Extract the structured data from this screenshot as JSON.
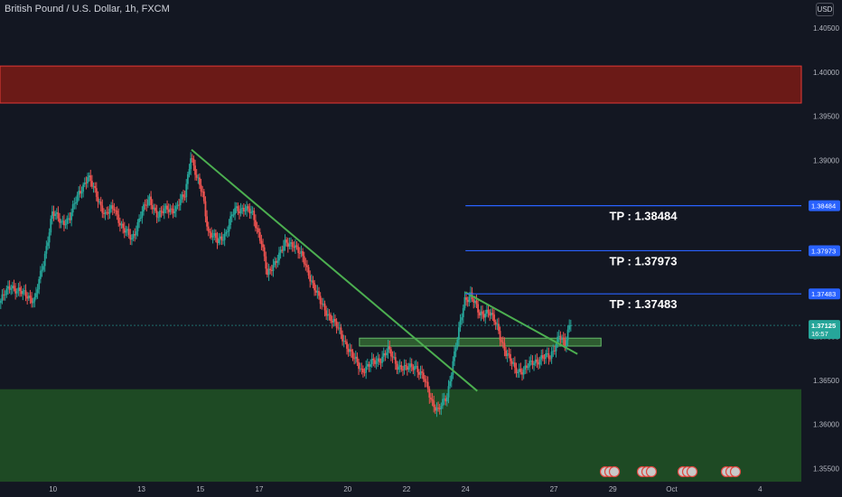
{
  "header": {
    "symbol_title": "British Pound / U.S. Dollar, 1h, FXCM",
    "currency": "USD"
  },
  "price_tag": {
    "value": "1.37125",
    "countdown": "16:57"
  },
  "chart_data": {
    "type": "candlestick",
    "y_axis": {
      "min": 1.3532,
      "max": 1.4082,
      "ticks": [
        "1.40500",
        "1.40000",
        "1.39500",
        "1.39000",
        "1.38500",
        "1.38000",
        "1.37500",
        "1.37000",
        "1.36500",
        "1.36000",
        "1.35500"
      ]
    },
    "x_axis": {
      "min_day": 8.2,
      "max_day": 35.4,
      "ticks": [
        {
          "label": "10",
          "day": 10
        },
        {
          "label": "13",
          "day": 13
        },
        {
          "label": "15",
          "day": 15
        },
        {
          "label": "17",
          "day": 17
        },
        {
          "label": "20",
          "day": 20
        },
        {
          "label": "22",
          "day": 22
        },
        {
          "label": "24",
          "day": 24
        },
        {
          "label": "27",
          "day": 27
        },
        {
          "label": "29",
          "day": 29
        },
        {
          "label": "Oct",
          "day": 31
        },
        {
          "label": "4",
          "day": 34
        }
      ]
    },
    "price_path": [
      [
        8.2,
        1.3738
      ],
      [
        8.6,
        1.3758
      ],
      [
        9.0,
        1.3748
      ],
      [
        9.4,
        1.3742
      ],
      [
        9.7,
        1.3782
      ],
      [
        10.0,
        1.3842
      ],
      [
        10.3,
        1.3828
      ],
      [
        10.6,
        1.3836
      ],
      [
        10.9,
        1.3862
      ],
      [
        11.2,
        1.3882
      ],
      [
        11.5,
        1.386
      ],
      [
        11.8,
        1.3838
      ],
      [
        12.1,
        1.3846
      ],
      [
        12.4,
        1.3822
      ],
      [
        12.7,
        1.381
      ],
      [
        13.0,
        1.3838
      ],
      [
        13.3,
        1.3856
      ],
      [
        13.6,
        1.3836
      ],
      [
        13.9,
        1.3846
      ],
      [
        14.2,
        1.3844
      ],
      [
        14.5,
        1.3862
      ],
      [
        14.7,
        1.3906
      ],
      [
        14.9,
        1.3878
      ],
      [
        15.1,
        1.3864
      ],
      [
        15.3,
        1.3818
      ],
      [
        15.6,
        1.3808
      ],
      [
        15.9,
        1.3818
      ],
      [
        16.2,
        1.3844
      ],
      [
        16.5,
        1.3846
      ],
      [
        16.8,
        1.3838
      ],
      [
        17.1,
        1.3808
      ],
      [
        17.3,
        1.3768
      ],
      [
        17.6,
        1.3788
      ],
      [
        17.9,
        1.3804
      ],
      [
        18.2,
        1.3806
      ],
      [
        18.5,
        1.3788
      ],
      [
        18.8,
        1.3764
      ],
      [
        19.1,
        1.3738
      ],
      [
        19.4,
        1.3724
      ],
      [
        19.7,
        1.3708
      ],
      [
        20.0,
        1.369
      ],
      [
        20.2,
        1.3676
      ],
      [
        20.5,
        1.3662
      ],
      [
        20.8,
        1.3668
      ],
      [
        21.1,
        1.3674
      ],
      [
        21.4,
        1.3684
      ],
      [
        21.7,
        1.3668
      ],
      [
        22.0,
        1.3662
      ],
      [
        22.3,
        1.3668
      ],
      [
        22.6,
        1.3652
      ],
      [
        22.9,
        1.3626
      ],
      [
        23.1,
        1.3615
      ],
      [
        23.4,
        1.3632
      ],
      [
        23.6,
        1.3672
      ],
      [
        23.8,
        1.3705
      ],
      [
        24.0,
        1.3742
      ],
      [
        24.2,
        1.3748
      ],
      [
        24.5,
        1.3724
      ],
      [
        24.8,
        1.373
      ],
      [
        25.1,
        1.371
      ],
      [
        25.4,
        1.3682
      ],
      [
        25.7,
        1.3662
      ],
      [
        26.0,
        1.3662
      ],
      [
        26.3,
        1.367
      ],
      [
        26.6,
        1.3676
      ],
      [
        26.9,
        1.3676
      ],
      [
        27.2,
        1.3702
      ],
      [
        27.4,
        1.3688
      ],
      [
        27.55,
        1.37125
      ]
    ],
    "zones": [
      {
        "name": "resistance-zone",
        "low": 1.3965,
        "high": 1.4007,
        "color": "#6b1a17"
      },
      {
        "name": "support-zone",
        "low": 1.3535,
        "high": 1.364,
        "color": "#1e4a24"
      },
      {
        "name": "breakout-zone",
        "low": 1.3689,
        "high": 1.3698,
        "day_start": 20.4,
        "day_end": 28.6,
        "color": "#2e5c30"
      }
    ],
    "trendlines": [
      {
        "name": "main-downtrend-line",
        "from": [
          14.7,
          1.3912
        ],
        "to": [
          24.4,
          1.3638
        ],
        "color": "#4caf50"
      },
      {
        "name": "minor-downtrend-line",
        "from": [
          24.0,
          1.375
        ],
        "to": [
          27.8,
          1.368
        ],
        "color": "#4caf50"
      }
    ],
    "tp_levels": [
      {
        "label": "TP : 1.38484",
        "value": 1.38484,
        "axis_label": "1.38484",
        "day_start": 24.0
      },
      {
        "label": "TP : 1.37973",
        "value": 1.37973,
        "axis_label": "1.37973",
        "day_start": 24.0
      },
      {
        "label": "TP : 1.37483",
        "value": 1.37483,
        "axis_label": "1.37483",
        "day_start": 24.0
      }
    ],
    "current_price": 1.37125,
    "colors": {
      "background": "#131722",
      "up": "#26a69a",
      "down": "#ef5350",
      "tp_line": "#2962ff",
      "grid": "#1e222d"
    }
  }
}
